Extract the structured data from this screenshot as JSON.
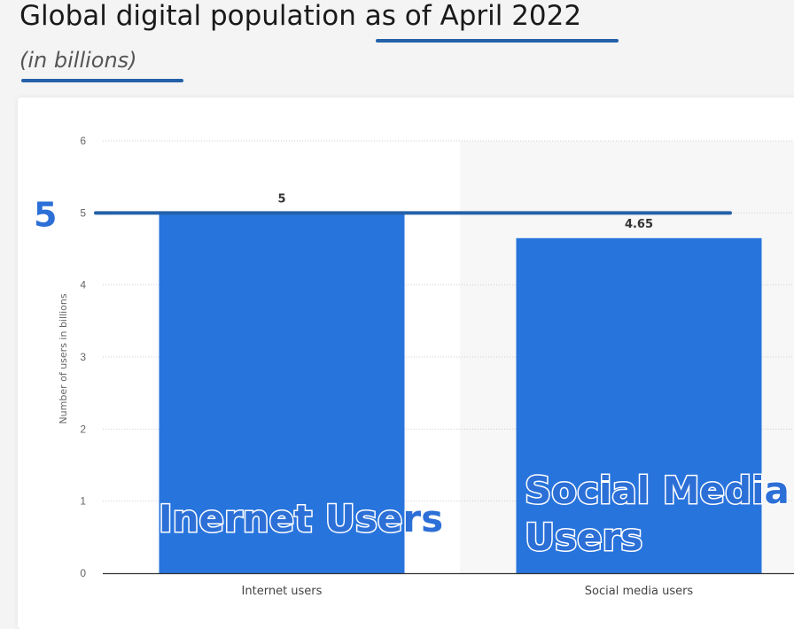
{
  "header": {
    "title": "Global digital population as of April 2022",
    "subtitle": "(in billions)"
  },
  "colors": {
    "bar": "#2874dd",
    "reference_line": "#2461a9",
    "annotation": "#2c6fd6",
    "shaded_band": "#f7f7f7"
  },
  "chart_data": {
    "type": "bar",
    "categories": [
      "Internet users",
      "Social media users"
    ],
    "values": [
      5,
      4.65
    ],
    "data_labels": [
      "5",
      "4.65"
    ],
    "ylabel": "Number of users in billions",
    "ylim": [
      0,
      6
    ],
    "yticks": [
      0,
      1,
      2,
      3,
      4,
      5,
      6
    ],
    "grid": true,
    "legend": "none",
    "reference_line": {
      "value": 5,
      "label": "5"
    },
    "annotations": [
      {
        "category_index": 0,
        "lines": [
          "Inernet Users"
        ]
      },
      {
        "category_index": 1,
        "lines": [
          "Social Media",
          "Users"
        ]
      }
    ]
  }
}
